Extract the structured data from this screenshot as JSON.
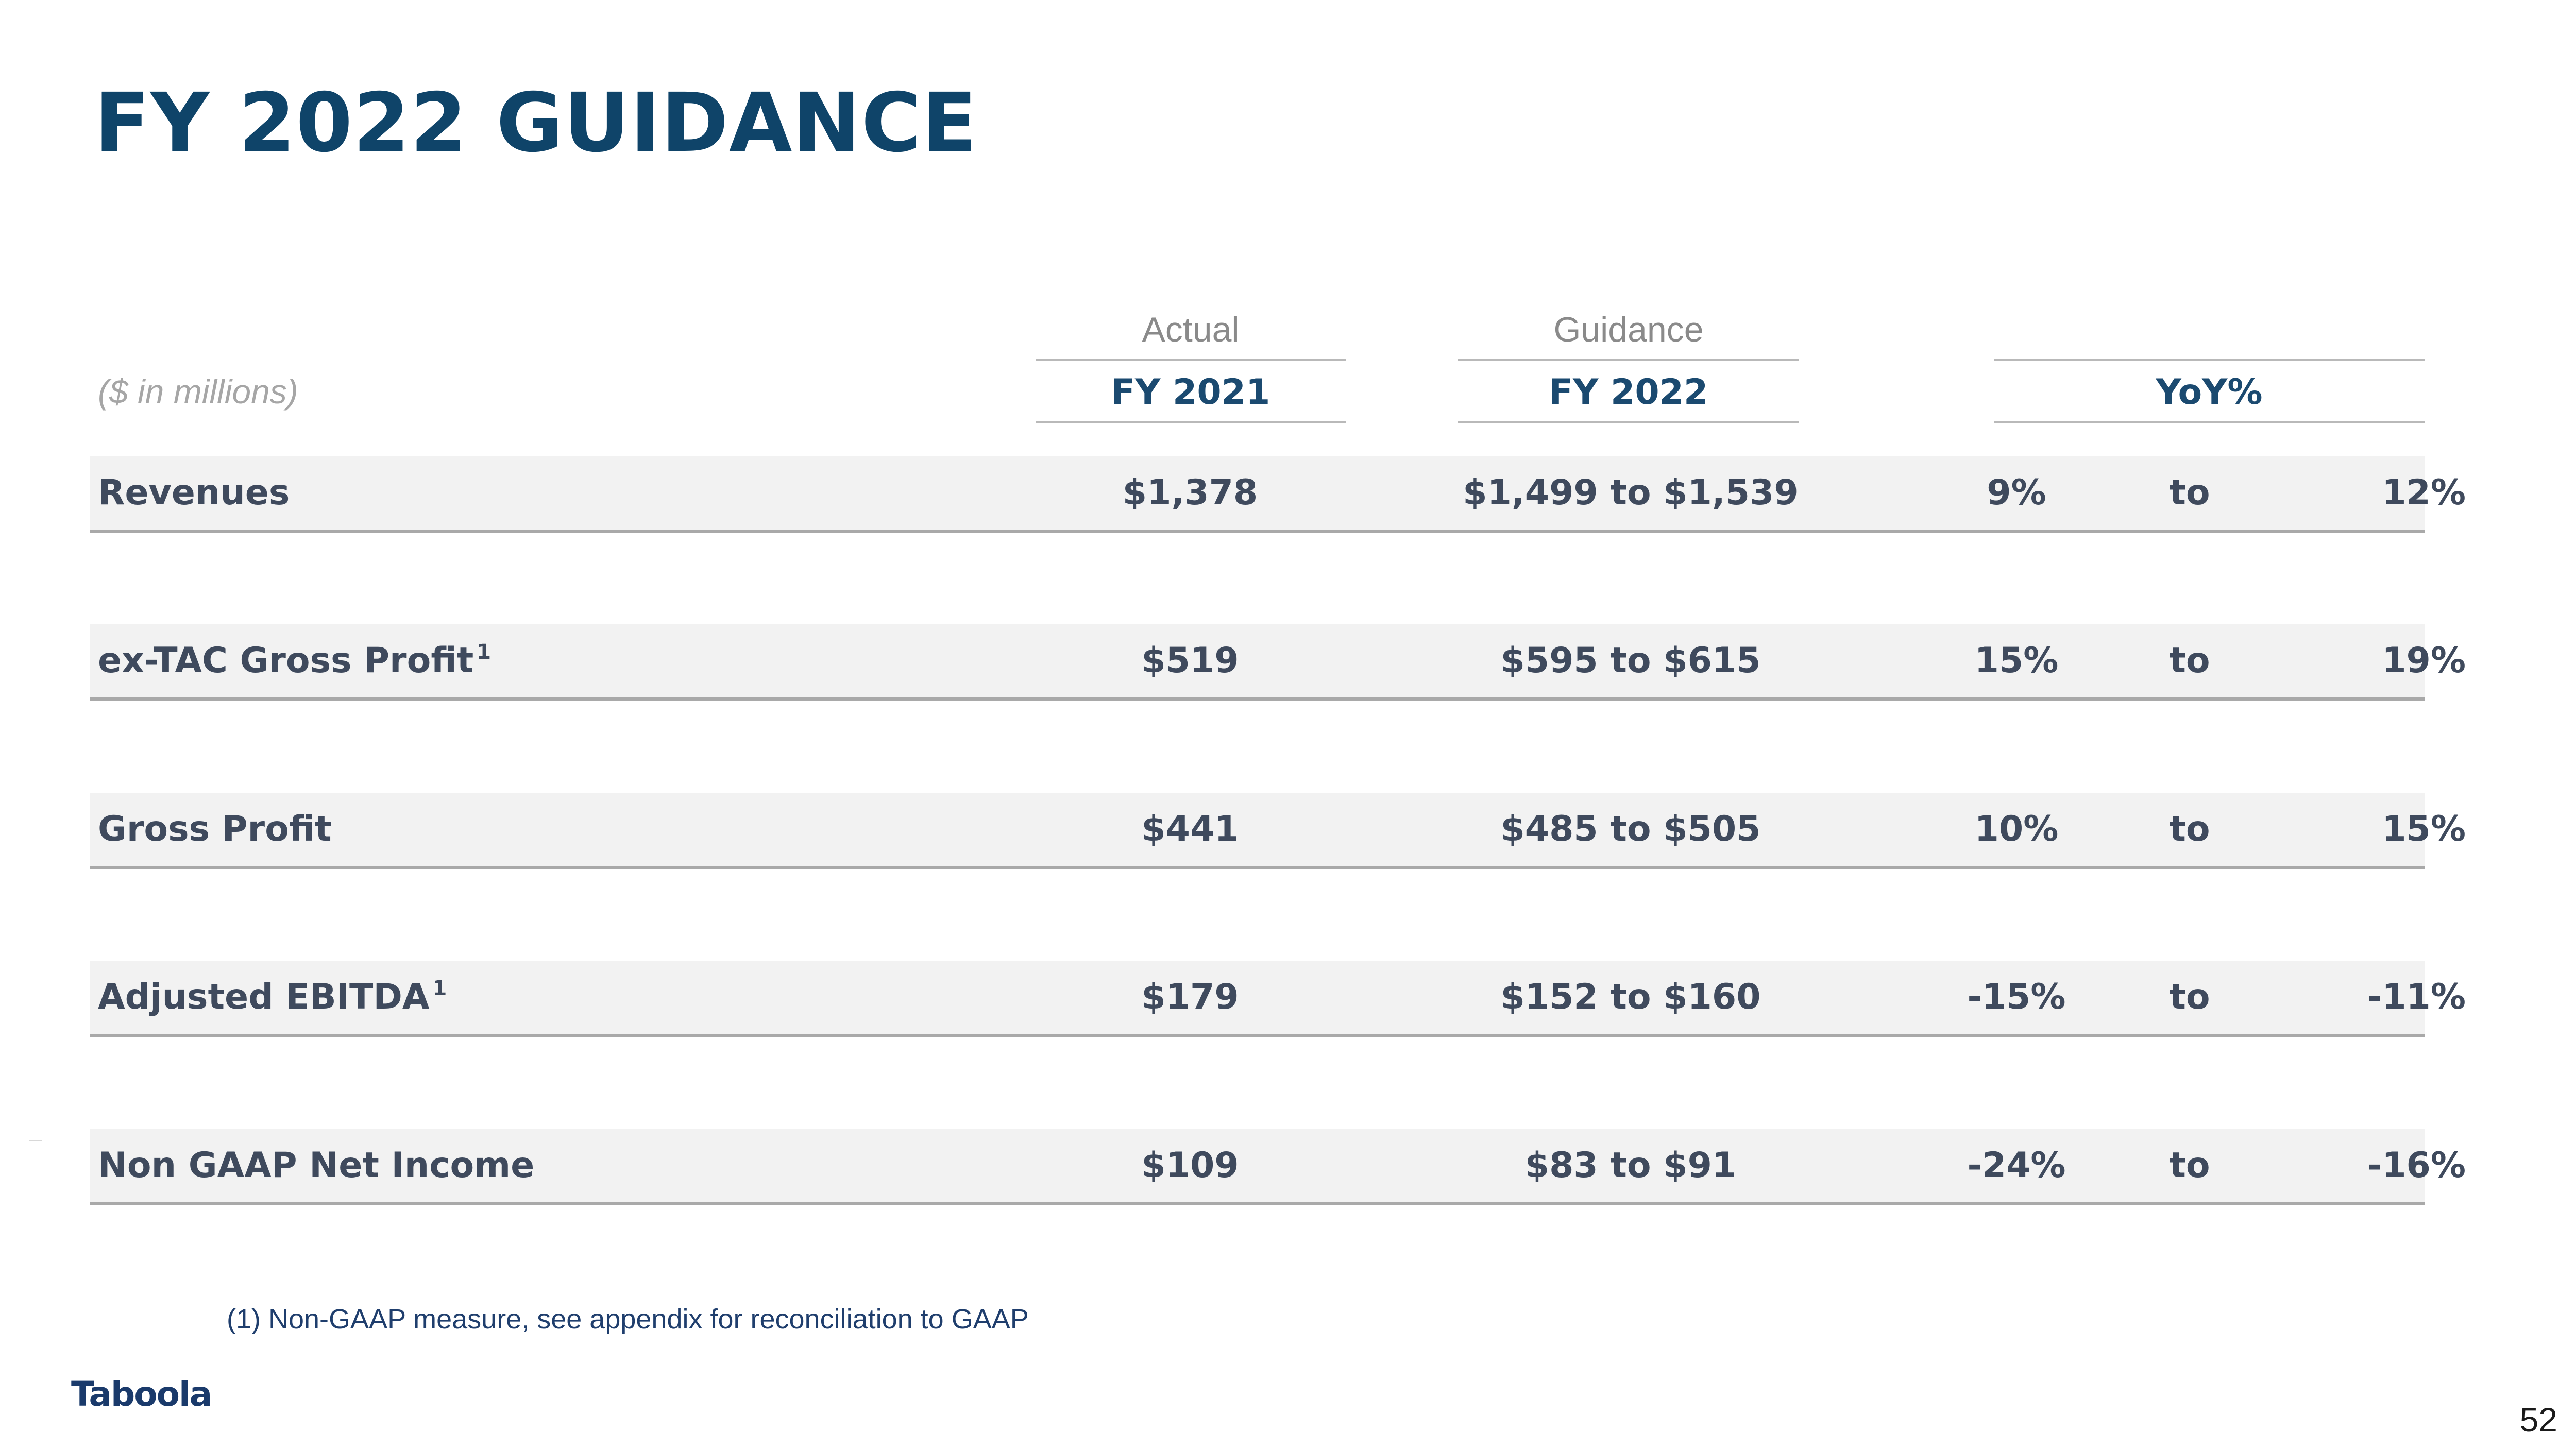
{
  "slide": {
    "title": "FY 2022 GUIDANCE",
    "units_label": "($ in millions)",
    "page_number": "52",
    "logo_text": "Taboola"
  },
  "table": {
    "columns": {
      "actual": {
        "super_label": "Actual",
        "label": "FY 2021"
      },
      "guidance": {
        "super_label": "Guidance",
        "label": "FY 2022"
      },
      "yoy": {
        "label": "YoY%"
      }
    },
    "rows": [
      {
        "label": "Revenues",
        "footnote_mark": "",
        "actual": "$1,378",
        "guidance": "$1,499 to $1,539",
        "yoy_low": "9%",
        "yoy_to": "to",
        "yoy_high": "12%"
      },
      {
        "label": "ex-TAC Gross Profit",
        "footnote_mark": "1",
        "actual": "$519",
        "guidance": "$595 to $615",
        "yoy_low": "15%",
        "yoy_to": "to",
        "yoy_high": "19%"
      },
      {
        "label": "Gross Profit",
        "footnote_mark": "",
        "actual": "$441",
        "guidance": "$485 to $505",
        "yoy_low": "10%",
        "yoy_to": "to",
        "yoy_high": "15%"
      },
      {
        "label": "Adjusted EBITDA",
        "footnote_mark": "1",
        "actual": "$179",
        "guidance": "$152 to $160",
        "yoy_low": "-15%",
        "yoy_to": "to",
        "yoy_high": "-11%"
      },
      {
        "label": "Non GAAP Net Income",
        "footnote_mark": "",
        "actual": "$109",
        "guidance": "$83 to $91",
        "yoy_low": "-24%",
        "yoy_to": "to",
        "yoy_high": "-16%"
      }
    ]
  },
  "footnote": "(1) Non-GAAP measure, see appendix for reconciliation to GAAP",
  "colors": {
    "title": "#0f4469",
    "row_background": "#f2f2f2",
    "row_text": "#3f4a5d",
    "rule": "#a9a9a9",
    "footnote": "#1f3e6d"
  }
}
